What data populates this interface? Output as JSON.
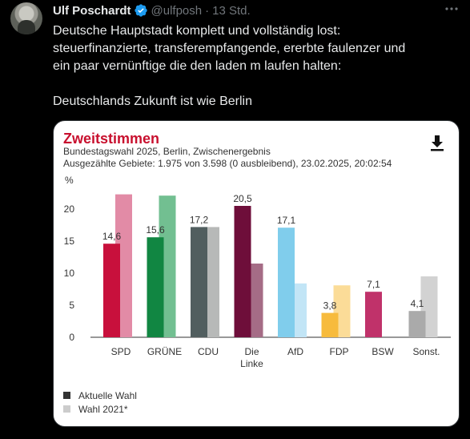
{
  "tweet": {
    "author_name": "Ulf Poschardt",
    "handle": "@ulfposh",
    "separator": "·",
    "time": "13 Std.",
    "more_icon": "more-horizontal-icon",
    "text_lines": [
      "Deutsche Hauptstadt komplett und vollständig lost:",
      "steuerfinanzierte, transferempfangende, ererbte faulenzer und",
      "ein paar vernünftige die den laden m laufen halten:"
    ],
    "text_line_after": "Deutschlands Zukunft ist wie Berlin",
    "verified_color": "#1d9bf0"
  },
  "card": {
    "title": "Zweitstimmen",
    "subtitle": "Bundestagswahl 2025, Berlin, Zwischenergebnis",
    "subtitle2": "Ausgezählte Gebiete: 1.975 von 3.598 (0 ausbleibend), 23.02.2025, 20:02:54",
    "download_icon": "download-icon",
    "title_color": "#c8102e"
  },
  "chart_data": {
    "type": "bar",
    "ylabel": "%",
    "ylim": [
      0,
      25
    ],
    "yticks": [
      0,
      5,
      10,
      15,
      20
    ],
    "grid": false,
    "legend_placement": "bottom-left",
    "categories": [
      "SPD",
      "GRÜNE",
      "CDU",
      "Die Linke",
      "AfD",
      "FDP",
      "BSW",
      "Sonst."
    ],
    "category_lines": [
      [
        "SPD"
      ],
      [
        "GRÜNE"
      ],
      [
        "CDU"
      ],
      [
        "Die",
        "Linke"
      ],
      [
        "AfD"
      ],
      [
        "FDP"
      ],
      [
        "BSW"
      ],
      [
        "Sonst."
      ]
    ],
    "series": [
      {
        "name": "Aktuelle Wahl",
        "values": [
          14.6,
          15.6,
          17.2,
          20.5,
          17.1,
          3.8,
          7.1,
          4.1
        ],
        "labels": [
          "14,6",
          "15,6",
          "17,2",
          "20,5",
          "17,1",
          "3,8",
          "7,1",
          "4,1"
        ],
        "colors": [
          "#c8103c",
          "#118642",
          "#515e5f",
          "#6e0e3a",
          "#80cdec",
          "#f7bb3d",
          "#c0326a",
          "#aaaaaa"
        ],
        "legend_color": "#333333"
      },
      {
        "name": "Wahl 2021*",
        "values": [
          22.3,
          22.1,
          17.2,
          11.5,
          8.4,
          8.1,
          0,
          9.5
        ],
        "colors": [
          "#e28ba6",
          "#72bf91",
          "#b7b9b8",
          "#a56c86",
          "#c2e5f6",
          "#fbdc98",
          "#e5a4bd",
          "#d2d2d2"
        ],
        "legend_color": "#cccccc"
      }
    ]
  }
}
